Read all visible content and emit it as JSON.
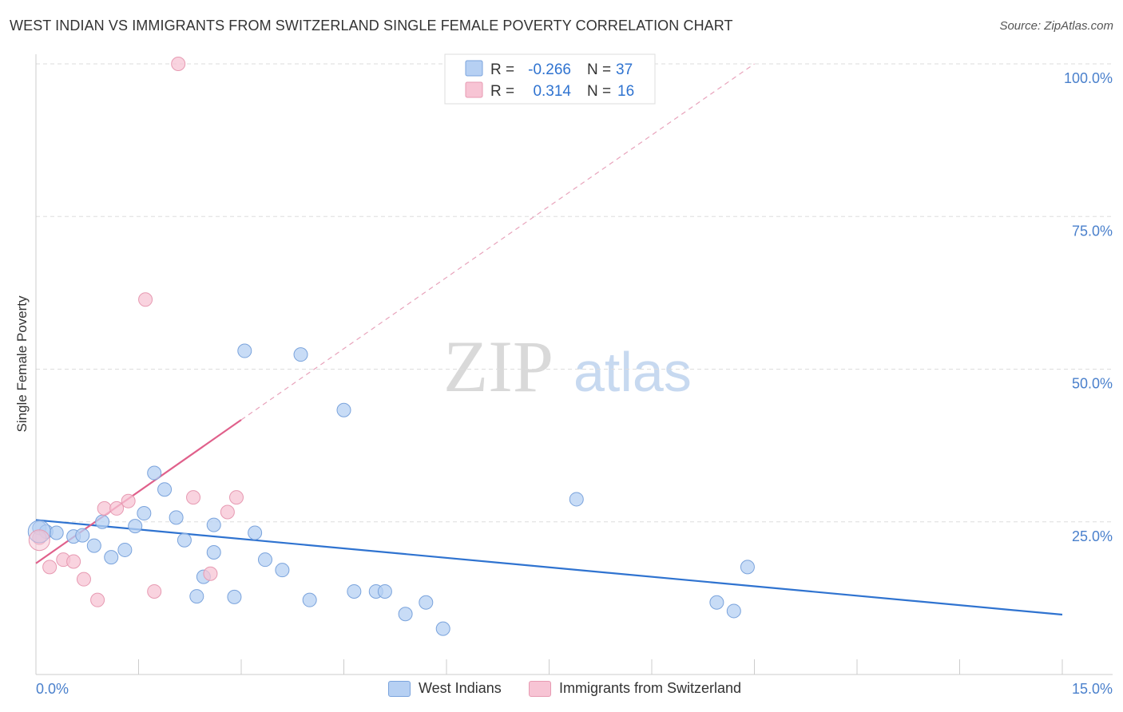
{
  "title": "WEST INDIAN VS IMMIGRANTS FROM SWITZERLAND SINGLE FEMALE POVERTY CORRELATION CHART",
  "source": "Source: ZipAtlas.com",
  "watermark": {
    "zip": "ZIP",
    "atlas": "atlas"
  },
  "colors": {
    "blue_fill": "#b6d0f3",
    "blue_stroke": "#7aa3dc",
    "blue_line": "#2f73d0",
    "pink_fill": "#f7c4d4",
    "pink_stroke": "#e79ab2",
    "pink_line": "#e0608b",
    "tick_text": "#4a80cc"
  },
  "legend": {
    "r_label": "R =",
    "n_label": "N =",
    "series1": {
      "r": "-0.266",
      "n": "37"
    },
    "series2": {
      "r": "0.314",
      "n": "16"
    }
  },
  "chart_data": {
    "type": "scatter",
    "title": "WEST INDIAN VS IMMIGRANTS FROM SWITZERLAND SINGLE FEMALE POVERTY CORRELATION CHART",
    "xlabel": "",
    "ylabel": "Single Female Poverty",
    "xlim": [
      0,
      15
    ],
    "ylim": [
      0,
      100
    ],
    "x_tick_labels": [
      "0.0%",
      "15.0%"
    ],
    "y_ticks": [
      25,
      50,
      75,
      100
    ],
    "y_tick_labels": [
      "25.0%",
      "50.0%",
      "75.0%",
      "100.0%"
    ],
    "grid": true,
    "legend_position": "top-center",
    "series": [
      {
        "name": "West Indians",
        "color": "#b6d0f3",
        "r": -0.266,
        "n": 37,
        "trend": {
          "x0": 0,
          "y0": 25.3,
          "x1": 15,
          "y1": 9.8
        },
        "points": [
          [
            0.05,
            24.0
          ],
          [
            0.15,
            23.4
          ],
          [
            0.3,
            23.2
          ],
          [
            0.55,
            22.6
          ],
          [
            0.68,
            22.8
          ],
          [
            0.85,
            21.1
          ],
          [
            0.97,
            25.0
          ],
          [
            1.1,
            19.2
          ],
          [
            1.3,
            20.4
          ],
          [
            1.45,
            24.3
          ],
          [
            1.58,
            26.4
          ],
          [
            1.73,
            33.0
          ],
          [
            1.88,
            30.3
          ],
          [
            2.05,
            25.7
          ],
          [
            2.17,
            22.0
          ],
          [
            2.35,
            12.8
          ],
          [
            2.45,
            16.0
          ],
          [
            2.6,
            24.5
          ],
          [
            2.6,
            20.0
          ],
          [
            2.9,
            12.7
          ],
          [
            3.05,
            53.0
          ],
          [
            3.2,
            23.2
          ],
          [
            3.35,
            18.8
          ],
          [
            3.6,
            17.1
          ],
          [
            3.87,
            52.4
          ],
          [
            4.0,
            12.2
          ],
          [
            4.5,
            43.3
          ],
          [
            4.65,
            13.6
          ],
          [
            4.97,
            13.6
          ],
          [
            5.1,
            13.6
          ],
          [
            5.4,
            9.9
          ],
          [
            5.7,
            11.8
          ],
          [
            5.95,
            7.5
          ],
          [
            7.9,
            28.7
          ],
          [
            9.95,
            11.8
          ],
          [
            10.2,
            10.4
          ],
          [
            10.4,
            17.6
          ]
        ]
      },
      {
        "name": "Immigrants from Switzerland",
        "color": "#f7c4d4",
        "r": 0.314,
        "n": 16,
        "trend": {
          "x0": 0,
          "y0": 18.2,
          "x1": 3.0,
          "y1": 41.7,
          "dashed_to": {
            "x": 10.5,
            "y": 100
          }
        },
        "points": [
          [
            0.05,
            22.4
          ],
          [
            0.2,
            17.6
          ],
          [
            0.4,
            18.8
          ],
          [
            0.55,
            18.5
          ],
          [
            0.7,
            15.6
          ],
          [
            0.9,
            12.2
          ],
          [
            1.0,
            27.2
          ],
          [
            1.18,
            27.2
          ],
          [
            1.35,
            28.4
          ],
          [
            1.6,
            61.4
          ],
          [
            1.73,
            13.6
          ],
          [
            2.08,
            100.0
          ],
          [
            2.3,
            29.0
          ],
          [
            2.55,
            16.5
          ],
          [
            2.8,
            26.6
          ],
          [
            2.93,
            29.0
          ]
        ]
      }
    ]
  }
}
